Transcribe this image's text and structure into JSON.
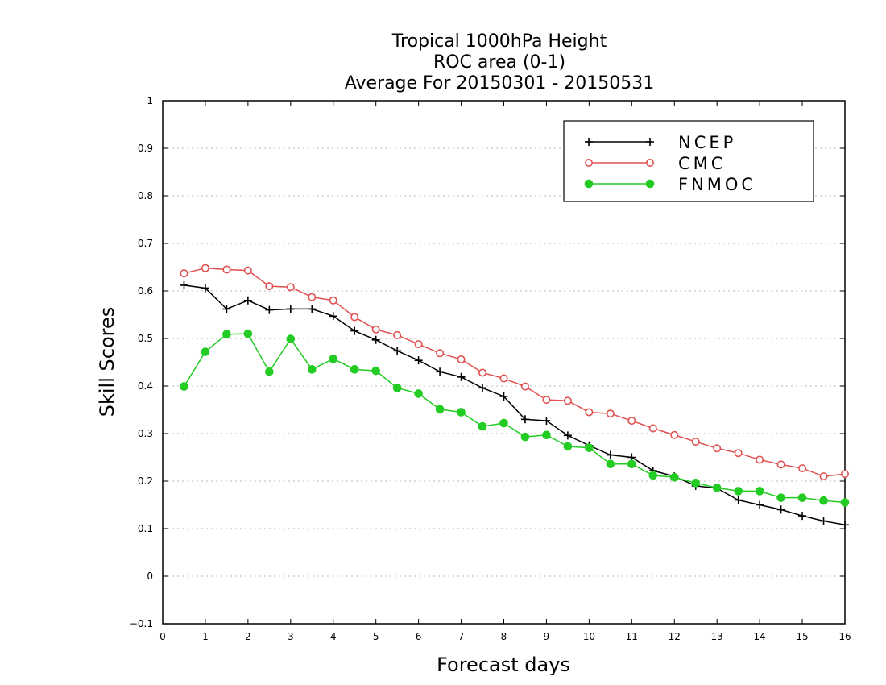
{
  "chart_data": {
    "type": "line",
    "title_lines": [
      "Tropical 1000hPa Height",
      "ROC area (0-1)",
      "Average For 20150301 - 20150531"
    ],
    "xlabel": "Forecast days",
    "ylabel": "Skill Scores",
    "xlim": [
      0,
      16
    ],
    "ylim": [
      -0.1,
      1
    ],
    "xticks": [
      "0",
      "1",
      "2",
      "3",
      "4",
      "5",
      "6",
      "7",
      "8",
      "9",
      "10",
      "11",
      "12",
      "13",
      "14",
      "15",
      "16"
    ],
    "yticks": [
      "−0.1",
      "0",
      "0.1",
      "0.2",
      "0.3",
      "0.4",
      "0.5",
      "0.6",
      "0.7",
      "0.8",
      "0.9",
      "1"
    ],
    "grid": true,
    "legend_position": "top-right",
    "x": [
      0.5,
      1,
      1.5,
      2,
      2.5,
      3,
      3.5,
      4,
      4.5,
      5,
      5.5,
      6,
      6.5,
      7,
      7.5,
      8,
      8.5,
      9,
      9.5,
      10,
      10.5,
      11,
      11.5,
      12,
      12.5,
      13,
      13.5,
      14,
      14.5,
      15,
      15.5,
      16
    ],
    "series": [
      {
        "name": "NCEP",
        "color": "#000000",
        "marker": "plus",
        "values": [
          0.612,
          0.606,
          0.562,
          0.58,
          0.56,
          0.562,
          0.562,
          0.547,
          0.516,
          0.497,
          0.474,
          0.454,
          0.43,
          0.419,
          0.396,
          0.378,
          0.33,
          0.327,
          0.296,
          0.275,
          0.255,
          0.25,
          0.222,
          0.21,
          0.19,
          0.185,
          0.16,
          0.15,
          0.14,
          0.127,
          0.116,
          0.108
        ]
      },
      {
        "name": "CMC",
        "color": "#e05050",
        "marker": "open-circle",
        "values": [
          0.637,
          0.648,
          0.645,
          0.643,
          0.61,
          0.608,
          0.587,
          0.58,
          0.545,
          0.519,
          0.507,
          0.488,
          0.469,
          0.456,
          0.428,
          0.416,
          0.399,
          0.371,
          0.369,
          0.345,
          0.342,
          0.327,
          0.311,
          0.297,
          0.283,
          0.269,
          0.259,
          0.245,
          0.235,
          0.227,
          0.21,
          0.215
        ]
      },
      {
        "name": "FNMOC",
        "color": "#22cc22",
        "marker": "filled-circle",
        "values": [
          0.399,
          0.472,
          0.509,
          0.51,
          0.43,
          0.499,
          0.435,
          0.457,
          0.435,
          0.432,
          0.396,
          0.384,
          0.351,
          0.345,
          0.315,
          0.322,
          0.293,
          0.297,
          0.273,
          0.27,
          0.236,
          0.236,
          0.212,
          0.208,
          0.196,
          0.186,
          0.179,
          0.179,
          0.165,
          0.165,
          0.159,
          0.155
        ]
      }
    ]
  }
}
